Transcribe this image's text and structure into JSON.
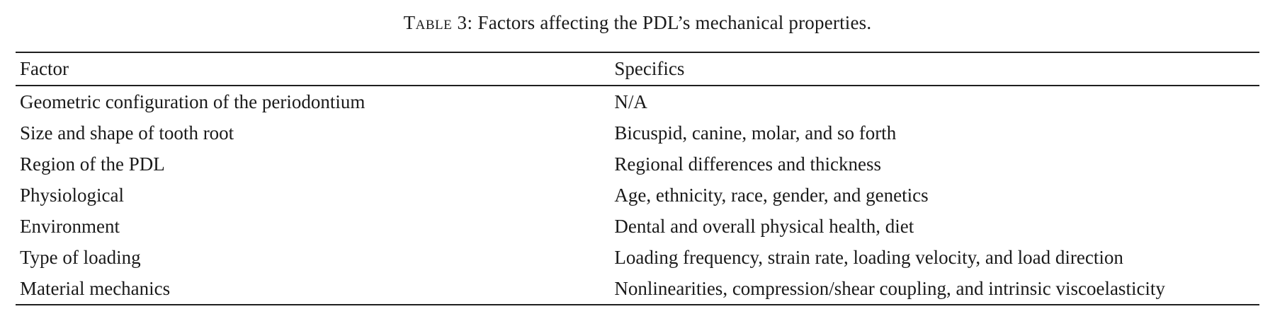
{
  "document": {
    "caption": {
      "label": "Table 3:",
      "text": " Factors affecting the PDL’s mechanical properties."
    },
    "table": {
      "headers": [
        "Factor",
        "Specifics"
      ],
      "rows": [
        {
          "factor": "Geometric configuration of the periodontium",
          "specifics": "N/A"
        },
        {
          "factor": "Size and shape of tooth root",
          "specifics": "Bicuspid, canine, molar, and so forth"
        },
        {
          "factor": "Region of the PDL",
          "specifics": "Regional differences and thickness"
        },
        {
          "factor": "Physiological",
          "specifics": "Age, ethnicity, race, gender, and genetics"
        },
        {
          "factor": "Environment",
          "specifics": "Dental and overall physical health, diet"
        },
        {
          "factor": "Type of loading",
          "specifics": "Loading frequency, strain rate, loading velocity, and load direction"
        },
        {
          "factor": "Material mechanics",
          "specifics": "Nonlinearities, compression/shear coupling, and intrinsic viscoelasticity"
        }
      ]
    },
    "colors": {
      "text": "#1a1a1a",
      "rule": "#1f1f1f",
      "background": "#ffffff"
    }
  }
}
